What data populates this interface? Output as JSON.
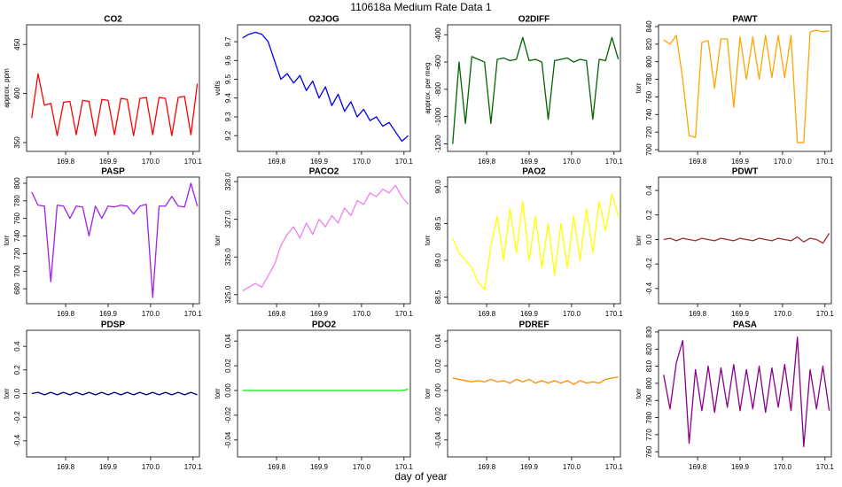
{
  "title": "110618a   Medium Rate Data 1",
  "x_label": "day of year",
  "chart_data": [
    {
      "type": "line",
      "title": "CO2",
      "y_label": "approx. ppm",
      "color": "#ff0000",
      "x": [
        169.72,
        169.735,
        169.75,
        169.765,
        169.78,
        169.795,
        169.81,
        169.825,
        169.84,
        169.855,
        169.87,
        169.885,
        169.9,
        169.915,
        169.93,
        169.945,
        169.96,
        169.975,
        169.99,
        170.005,
        170.02,
        170.035,
        170.05,
        170.065,
        170.08,
        170.095,
        170.11
      ],
      "values": [
        375,
        420,
        388,
        390,
        357,
        391,
        392,
        358,
        393,
        392,
        357,
        394,
        393,
        358,
        395,
        394,
        357,
        395,
        396,
        358,
        396,
        395,
        357,
        396,
        397,
        358,
        410
      ],
      "xlim": [
        169.708,
        170.115
      ],
      "ylim": [
        341,
        470
      ],
      "xticks": [
        169.8,
        169.9,
        {
          "value": 170,
          "label": "170.0"
        },
        170.1
      ],
      "yticks": [
        350,
        400,
        450
      ]
    },
    {
      "type": "line",
      "title": "O2JOG",
      "y_label": "volts",
      "color": "#0000ee",
      "x": [
        169.72,
        169.735,
        169.75,
        169.765,
        169.78,
        169.795,
        169.81,
        169.825,
        169.84,
        169.855,
        169.87,
        169.885,
        169.9,
        169.915,
        169.93,
        169.945,
        169.96,
        169.975,
        169.99,
        170.005,
        170.02,
        170.035,
        170.05,
        170.065,
        170.08,
        170.095,
        170.11
      ],
      "values": [
        9.72,
        9.74,
        9.75,
        9.74,
        9.7,
        9.6,
        9.5,
        9.53,
        9.48,
        9.52,
        9.44,
        9.49,
        9.4,
        9.46,
        9.36,
        9.42,
        9.33,
        9.38,
        9.3,
        9.34,
        9.28,
        9.3,
        9.25,
        9.27,
        9.22,
        9.17,
        9.2
      ],
      "xlim": [
        169.708,
        170.115
      ],
      "ylim": [
        9.116,
        9.79
      ],
      "xticks": [
        169.8,
        169.9,
        {
          "value": 170,
          "label": "170.0"
        },
        170.1
      ],
      "yticks": [
        9.2,
        9.3,
        9.4,
        9.5,
        9.6,
        9.7
      ]
    },
    {
      "type": "line",
      "title": "O2DIFF",
      "y_label": "approx. per meg",
      "color": "#006400",
      "x": [
        169.72,
        169.735,
        169.75,
        169.765,
        169.78,
        169.795,
        169.81,
        169.825,
        169.84,
        169.855,
        169.87,
        169.885,
        169.9,
        169.915,
        169.93,
        169.945,
        169.96,
        169.975,
        169.99,
        170.005,
        170.02,
        170.035,
        170.05,
        170.065,
        170.08,
        170.095,
        170.11
      ],
      "values": [
        -1200,
        -600,
        -1050,
        -560,
        -580,
        -600,
        -1050,
        -580,
        -570,
        -590,
        -580,
        -420,
        -590,
        -580,
        -600,
        -1020,
        -590,
        -580,
        -570,
        -600,
        -580,
        -590,
        -1020,
        -580,
        -590,
        -420,
        -580
      ],
      "xlim": [
        169.708,
        170.115
      ],
      "ylim": [
        -1255,
        -327
      ],
      "xticks": [
        169.8,
        169.9,
        {
          "value": 170,
          "label": "170.0"
        },
        170.1
      ],
      "yticks": [
        -1200,
        -1000,
        -800,
        -600,
        -400
      ]
    },
    {
      "type": "line",
      "title": "PAWT",
      "y_label": "torr",
      "color": "#ffa500",
      "x": [
        169.72,
        169.735,
        169.75,
        169.765,
        169.78,
        169.795,
        169.81,
        169.825,
        169.84,
        169.855,
        169.87,
        169.885,
        169.9,
        169.915,
        169.93,
        169.945,
        169.96,
        169.975,
        169.99,
        170.005,
        170.02,
        170.035,
        170.05,
        170.065,
        170.08,
        170.095,
        170.11
      ],
      "values": [
        825,
        820,
        830,
        780,
        716,
        714,
        822,
        824,
        770,
        826,
        826,
        748,
        828,
        780,
        828,
        780,
        830,
        782,
        830,
        782,
        830,
        708,
        708,
        834,
        836,
        834,
        835
      ],
      "xlim": [
        169.708,
        170.115
      ],
      "ylim": [
        698,
        842
      ],
      "xticks": [
        169.8,
        169.9,
        {
          "value": 170,
          "label": "170.0"
        },
        170.1
      ],
      "yticks": [
        700,
        720,
        740,
        760,
        780,
        800,
        820,
        840
      ]
    },
    {
      "type": "line",
      "title": "PASP",
      "y_label": "torr",
      "color": "#a020f0",
      "x": [
        169.72,
        169.735,
        169.75,
        169.765,
        169.78,
        169.795,
        169.81,
        169.825,
        169.84,
        169.855,
        169.87,
        169.885,
        169.9,
        169.915,
        169.93,
        169.945,
        169.96,
        169.975,
        169.99,
        170.005,
        170.02,
        170.035,
        170.05,
        170.065,
        170.08,
        170.095,
        170.11
      ],
      "values": [
        790,
        775,
        774,
        688,
        775,
        774,
        760,
        774,
        773,
        740,
        774,
        760,
        774,
        773,
        775,
        774,
        765,
        774,
        776,
        670,
        774,
        774,
        785,
        774,
        773,
        800,
        774
      ],
      "xlim": [
        169.708,
        170.115
      ],
      "ylim": [
        663,
        807
      ],
      "xticks": [
        169.8,
        169.9,
        {
          "value": 170,
          "label": "170.0"
        },
        170.1
      ],
      "yticks": [
        680,
        700,
        720,
        740,
        760,
        780,
        800
      ]
    },
    {
      "type": "line",
      "title": "PACO2",
      "y_label": "torr",
      "color": "#ee82ee",
      "x": [
        169.72,
        169.735,
        169.75,
        169.765,
        169.78,
        169.795,
        169.81,
        169.825,
        169.84,
        169.855,
        169.87,
        169.885,
        169.9,
        169.915,
        169.93,
        169.945,
        169.96,
        169.975,
        169.99,
        170.005,
        170.02,
        170.035,
        170.05,
        170.065,
        170.08,
        170.095,
        170.11
      ],
      "values": [
        325.1,
        325.2,
        325.3,
        325.2,
        325.5,
        325.8,
        326.3,
        326.6,
        326.8,
        326.5,
        326.9,
        326.6,
        327,
        326.8,
        327.1,
        326.9,
        327.3,
        327.1,
        327.5,
        327.4,
        327.7,
        327.6,
        327.8,
        327.7,
        327.9,
        327.6,
        327.4
      ],
      "xlim": [
        169.708,
        170.115
      ],
      "ylim": [
        324.76,
        328.12
      ],
      "xticks": [
        169.8,
        169.9,
        {
          "value": 170,
          "label": "170.0"
        },
        170.1
      ],
      "yticks": [
        {
          "value": 325,
          "label": "325.0"
        },
        {
          "value": 326,
          "label": "326.0"
        },
        {
          "value": 327,
          "label": "327.0"
        },
        {
          "value": 328,
          "label": "328.0"
        }
      ]
    },
    {
      "type": "line",
      "title": "PAO2",
      "y_label": "torr",
      "color": "#ffff00",
      "x": [
        169.72,
        169.735,
        169.75,
        169.765,
        169.78,
        169.795,
        169.81,
        169.825,
        169.84,
        169.855,
        169.87,
        169.885,
        169.9,
        169.915,
        169.93,
        169.945,
        169.96,
        169.975,
        169.99,
        170.005,
        170.02,
        170.035,
        170.05,
        170.065,
        170.08,
        170.095,
        170.11
      ],
      "values": [
        89.3,
        89.1,
        89,
        88.9,
        88.7,
        88.6,
        89.2,
        89.6,
        89,
        89.7,
        89.1,
        89.8,
        89,
        89.6,
        88.9,
        89.5,
        88.8,
        89.5,
        88.9,
        89.6,
        89,
        89.7,
        89.1,
        89.8,
        89.4,
        89.9,
        89.6
      ],
      "xlim": [
        169.708,
        170.115
      ],
      "ylim": [
        88.41,
        90.13
      ],
      "xticks": [
        169.8,
        169.9,
        {
          "value": 170,
          "label": "170.0"
        },
        170.1
      ],
      "yticks": [
        88.5,
        {
          "value": 89,
          "label": "89.0"
        },
        89.5,
        {
          "value": 90,
          "label": "90.0"
        }
      ]
    },
    {
      "type": "line",
      "title": "PDWT",
      "y_label": "torr",
      "color": "#a52a2a",
      "x": [
        169.72,
        169.735,
        169.75,
        169.765,
        169.78,
        169.795,
        169.81,
        169.825,
        169.84,
        169.855,
        169.87,
        169.885,
        169.9,
        169.915,
        169.93,
        169.945,
        169.96,
        169.975,
        169.99,
        170.005,
        170.02,
        170.035,
        170.05,
        170.065,
        170.08,
        170.095,
        170.11
      ],
      "values": [
        0,
        0.01,
        -0.01,
        0.01,
        0,
        -0.01,
        0.01,
        0,
        -0.01,
        0.01,
        0,
        -0.01,
        0.01,
        0,
        -0.01,
        0.01,
        0,
        -0.01,
        0.01,
        0,
        -0.01,
        0.02,
        -0.02,
        0.01,
        0,
        -0.03,
        0.05
      ],
      "xlim": [
        169.708,
        170.115
      ],
      "ylim": [
        -0.524,
        0.509
      ],
      "xticks": [
        169.8,
        169.9,
        {
          "value": 170,
          "label": "170.0"
        },
        170.1
      ],
      "yticks": [
        -0.4,
        -0.2,
        {
          "value": 0,
          "label": "0.0"
        },
        0.2,
        0.4
      ]
    },
    {
      "type": "line",
      "title": "PDSP",
      "y_label": "torr",
      "color": "#000080",
      "x": [
        169.72,
        169.735,
        169.75,
        169.765,
        169.78,
        169.795,
        169.81,
        169.825,
        169.84,
        169.855,
        169.87,
        169.885,
        169.9,
        169.915,
        169.93,
        169.945,
        169.96,
        169.975,
        169.99,
        170.005,
        170.02,
        170.035,
        170.05,
        170.065,
        170.08,
        170.095,
        170.11
      ],
      "values": [
        0,
        0.01,
        -0.01,
        0.01,
        -0.01,
        0.01,
        -0.01,
        0.01,
        -0.01,
        0.01,
        -0.01,
        0.01,
        -0.01,
        0.01,
        -0.01,
        0.01,
        -0.01,
        0.01,
        -0.01,
        0.01,
        -0.01,
        0.01,
        -0.01,
        0.01,
        -0.01,
        0.01,
        -0.01
      ],
      "xlim": [
        169.708,
        170.115
      ],
      "ylim": [
        -0.536,
        0.536
      ],
      "xticks": [
        169.8,
        169.9,
        {
          "value": 170,
          "label": "170.0"
        },
        170.1
      ],
      "yticks": [
        -0.4,
        -0.2,
        {
          "value": 0,
          "label": "0.0"
        },
        0.2,
        0.4
      ]
    },
    {
      "type": "line",
      "title": "PDO2",
      "y_label": "torr",
      "color": "#00ee00",
      "x": [
        169.72,
        169.735,
        169.75,
        169.765,
        169.78,
        169.795,
        169.81,
        169.825,
        169.84,
        169.855,
        169.87,
        169.885,
        169.9,
        169.915,
        169.93,
        169.945,
        169.96,
        169.975,
        169.99,
        170.005,
        170.02,
        170.035,
        170.05,
        170.065,
        170.08,
        170.095,
        170.11
      ],
      "values": [
        0,
        0,
        0,
        0,
        0,
        0,
        0,
        0,
        0,
        0,
        0,
        0,
        0,
        0,
        0,
        0,
        0,
        0,
        0,
        0,
        0,
        0,
        0,
        0,
        0,
        0,
        0.001
      ],
      "xlim": [
        169.708,
        170.115
      ],
      "ylim": [
        -0.0537,
        0.0487
      ],
      "xticks": [
        169.8,
        169.9,
        {
          "value": 170,
          "label": "170.0"
        },
        170.1
      ],
      "yticks": [
        -0.04,
        -0.02,
        {
          "value": 0,
          "label": "0.00"
        },
        0.02,
        0.04
      ]
    },
    {
      "type": "line",
      "title": "PDREF",
      "y_label": "torr",
      "color": "#ff8c00",
      "x": [
        169.72,
        169.735,
        169.75,
        169.765,
        169.78,
        169.795,
        169.81,
        169.825,
        169.84,
        169.855,
        169.87,
        169.885,
        169.9,
        169.915,
        169.93,
        169.945,
        169.96,
        169.975,
        169.99,
        170.005,
        170.02,
        170.035,
        170.05,
        170.065,
        170.08,
        170.095,
        170.11
      ],
      "values": [
        0.01,
        0.009,
        0.008,
        0.007,
        0.008,
        0.007,
        0.009,
        0.007,
        0.008,
        0.006,
        0.009,
        0.007,
        0.009,
        0.006,
        0.008,
        0.006,
        0.008,
        0.006,
        0.008,
        0.005,
        0.008,
        0.006,
        0.007,
        0.006,
        0.009,
        0.01,
        0.011
      ],
      "xlim": [
        169.708,
        170.115
      ],
      "ylim": [
        -0.0537,
        0.0487
      ],
      "xticks": [
        169.8,
        169.9,
        {
          "value": 170,
          "label": "170.0"
        },
        170.1
      ],
      "yticks": [
        -0.04,
        -0.02,
        {
          "value": 0,
          "label": "0.00"
        },
        0.02,
        0.04
      ]
    },
    {
      "type": "line",
      "title": "PASA",
      "y_label": "torr",
      "color": "#8b008b",
      "x": [
        169.72,
        169.735,
        169.75,
        169.765,
        169.78,
        169.795,
        169.81,
        169.825,
        169.84,
        169.855,
        169.87,
        169.885,
        169.9,
        169.915,
        169.93,
        169.945,
        169.96,
        169.975,
        169.99,
        170.005,
        170.02,
        170.035,
        170.05,
        170.065,
        170.08,
        170.095,
        170.11
      ],
      "values": [
        805,
        785,
        812,
        825,
        765,
        808,
        784,
        810,
        783,
        809,
        786,
        811,
        784,
        808,
        785,
        810,
        783,
        809,
        786,
        811,
        784,
        827,
        763,
        808,
        785,
        810,
        784
      ],
      "xlim": [
        169.708,
        170.115
      ],
      "ylim": [
        757,
        831
      ],
      "xticks": [
        169.8,
        169.9,
        {
          "value": 170,
          "label": "170.0"
        },
        170.1
      ],
      "yticks": [
        760,
        770,
        780,
        790,
        800,
        810,
        820,
        830
      ]
    }
  ]
}
